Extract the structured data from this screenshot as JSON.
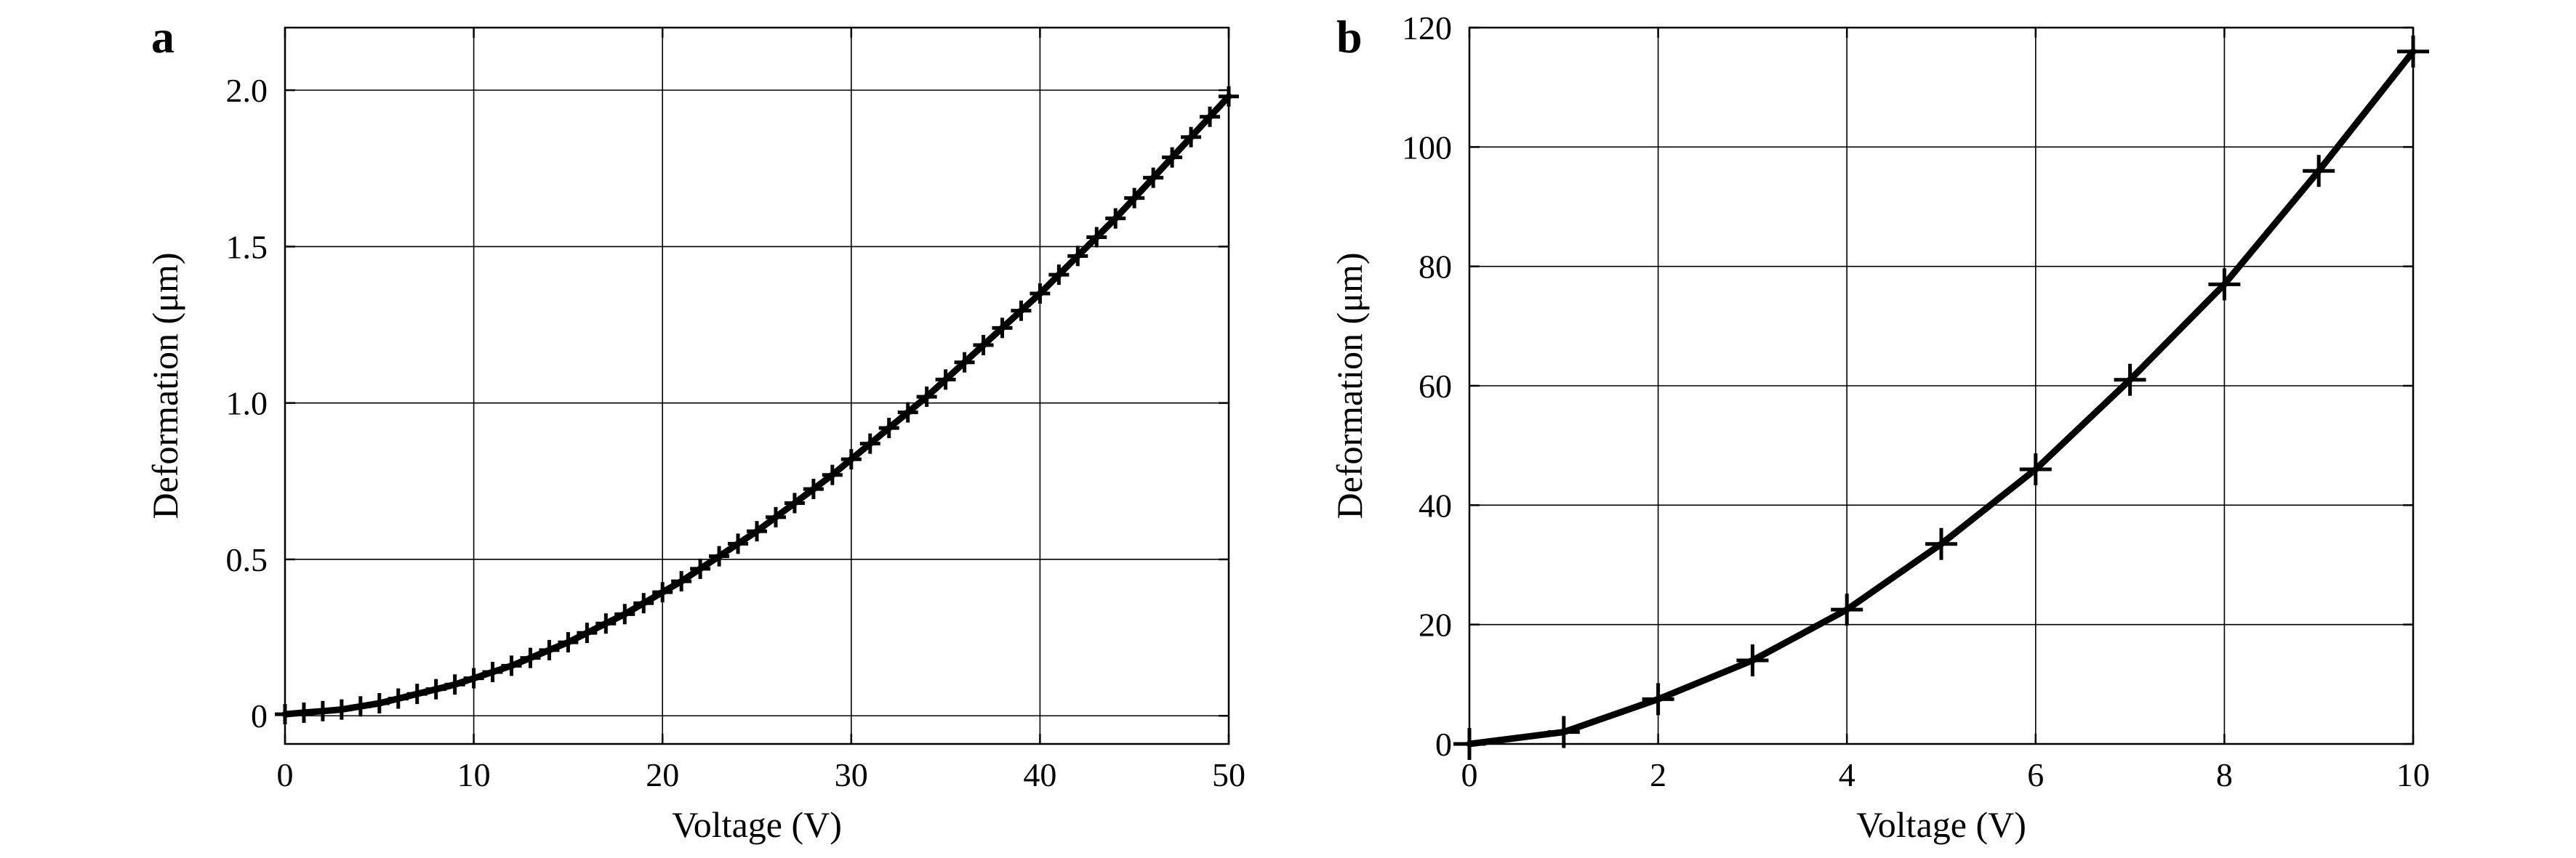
{
  "chart_data": [
    {
      "panel": "a",
      "type": "line",
      "xlabel": "Voltage (V)",
      "ylabel": "Deformation (μm)",
      "xlim": [
        0,
        50
      ],
      "ylim": [
        -0.09,
        2.2
      ],
      "xticks": [
        0,
        10,
        20,
        30,
        40,
        50
      ],
      "xtick_labels": [
        "0",
        "10",
        "20",
        "30",
        "40",
        "50"
      ],
      "yticks": [
        0,
        0.5,
        1.0,
        1.5,
        2.0
      ],
      "ytick_labels": [
        "0",
        "0.5",
        "1.0",
        "1.5",
        "2.0"
      ],
      "grid": true,
      "marker": "+",
      "x": [
        0,
        1,
        2,
        3,
        4,
        5,
        6,
        7,
        8,
        9,
        10,
        11,
        12,
        13,
        14,
        15,
        16,
        17,
        18,
        19,
        20,
        21,
        22,
        23,
        24,
        25,
        26,
        27,
        28,
        29,
        30,
        31,
        32,
        33,
        34,
        35,
        36,
        37,
        38,
        39,
        40,
        41,
        42,
        43,
        44,
        45,
        46,
        47,
        48,
        49,
        50
      ],
      "y": [
        0.005,
        0.01,
        0.015,
        0.02,
        0.03,
        0.04,
        0.055,
        0.07,
        0.085,
        0.1,
        0.12,
        0.14,
        0.16,
        0.185,
        0.21,
        0.235,
        0.265,
        0.295,
        0.325,
        0.36,
        0.395,
        0.43,
        0.47,
        0.51,
        0.55,
        0.59,
        0.635,
        0.68,
        0.725,
        0.77,
        0.82,
        0.87,
        0.92,
        0.97,
        1.02,
        1.075,
        1.13,
        1.185,
        1.24,
        1.295,
        1.35,
        1.41,
        1.47,
        1.53,
        1.59,
        1.655,
        1.72,
        1.785,
        1.85,
        1.915,
        1.98
      ]
    },
    {
      "panel": "b",
      "type": "line",
      "xlabel": "Voltage (V)",
      "ylabel": "Deformation (μm)",
      "xlim": [
        0,
        10
      ],
      "ylim": [
        0,
        120
      ],
      "xticks": [
        0,
        2,
        4,
        6,
        8,
        10
      ],
      "xtick_labels": [
        "0",
        "2",
        "4",
        "6",
        "8",
        "10"
      ],
      "yticks": [
        0,
        20,
        40,
        60,
        80,
        100,
        120
      ],
      "ytick_labels": [
        "0",
        "20",
        "40",
        "60",
        "80",
        "100",
        "120"
      ],
      "grid": true,
      "marker": "+",
      "x": [
        0,
        1,
        2,
        3,
        4,
        5,
        6,
        7,
        8,
        9,
        10
      ],
      "y": [
        0,
        2,
        7.5,
        14,
        22.5,
        33.5,
        46,
        61,
        77,
        96,
        116
      ]
    }
  ]
}
